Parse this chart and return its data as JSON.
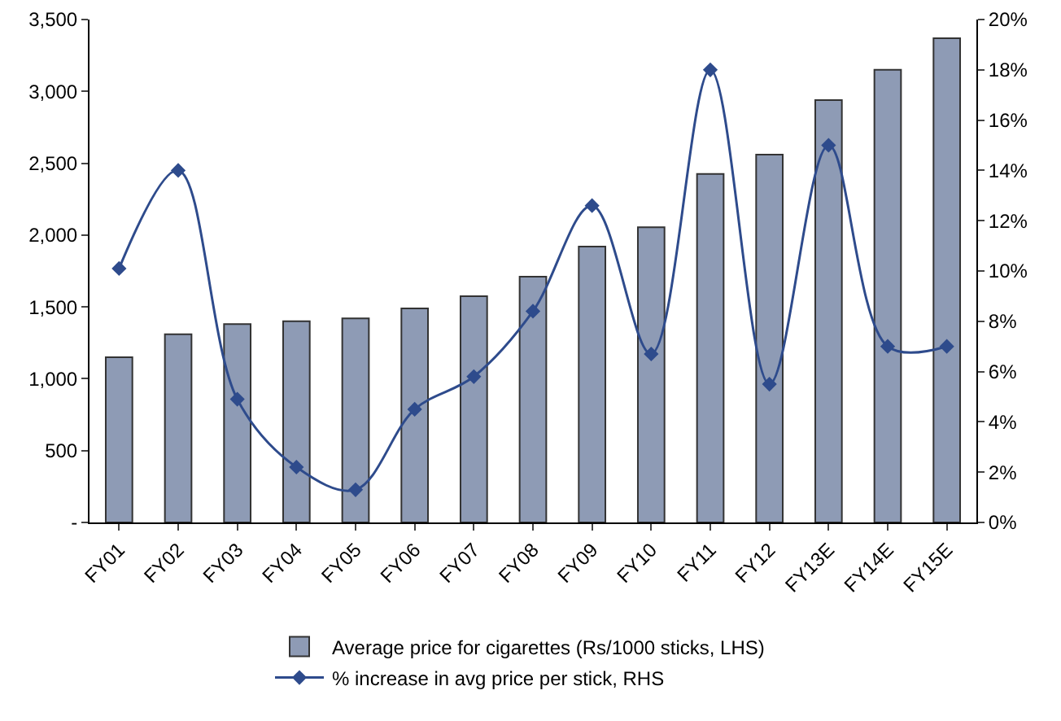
{
  "chart_data": {
    "type": "bar",
    "categories": [
      "FY01",
      "FY02",
      "FY03",
      "FY04",
      "FY05",
      "FY06",
      "FY07",
      "FY08",
      "FY09",
      "FY10",
      "FY11",
      "FY12",
      "FY13E",
      "FY14E",
      "FY15E"
    ],
    "series": [
      {
        "name": "Average price for cigarettes (Rs/1000 sticks, LHS)",
        "color": "#8e9bb5",
        "values": [
          1150,
          1310,
          1380,
          1400,
          1420,
          1490,
          1575,
          1710,
          1920,
          2055,
          2425,
          2560,
          2940,
          3150,
          3370
        ]
      },
      {
        "name": "% increase in avg price per stick, RHS",
        "type": "line",
        "axis": "y2",
        "color": "#2e4b8c",
        "marker": "diamond",
        "line_style": "solid",
        "values": [
          10.1,
          14.0,
          4.9,
          2.2,
          1.3,
          4.5,
          5.8,
          8.4,
          12.6,
          6.7,
          18.0,
          5.5,
          15.0,
          7.0,
          7.0
        ]
      }
    ],
    "ylim": [
      0,
      3500
    ],
    "yticks": [
      {
        "value": 0,
        "label": "-"
      },
      {
        "value": 500,
        "label": "500"
      },
      {
        "value": 1000,
        "label": "1,000"
      },
      {
        "value": 1500,
        "label": "1,500"
      },
      {
        "value": 2000,
        "label": "2,000"
      },
      {
        "value": 2500,
        "label": "2,500"
      },
      {
        "value": 3000,
        "label": "3,000"
      },
      {
        "value": 3500,
        "label": "3,500"
      }
    ],
    "y2lim": [
      0,
      20
    ],
    "y2ticks": [
      {
        "value": 0,
        "label": "0%"
      },
      {
        "value": 2,
        "label": "2%"
      },
      {
        "value": 4,
        "label": "4%"
      },
      {
        "value": 6,
        "label": "6%"
      },
      {
        "value": 8,
        "label": "8%"
      },
      {
        "value": 10,
        "label": "10%"
      },
      {
        "value": 12,
        "label": "12%"
      },
      {
        "value": 14,
        "label": "14%"
      },
      {
        "value": 16,
        "label": "16%"
      },
      {
        "value": 18,
        "label": "18%"
      },
      {
        "value": 20,
        "label": "20%"
      }
    ],
    "grid": false,
    "legend": "bottom"
  }
}
